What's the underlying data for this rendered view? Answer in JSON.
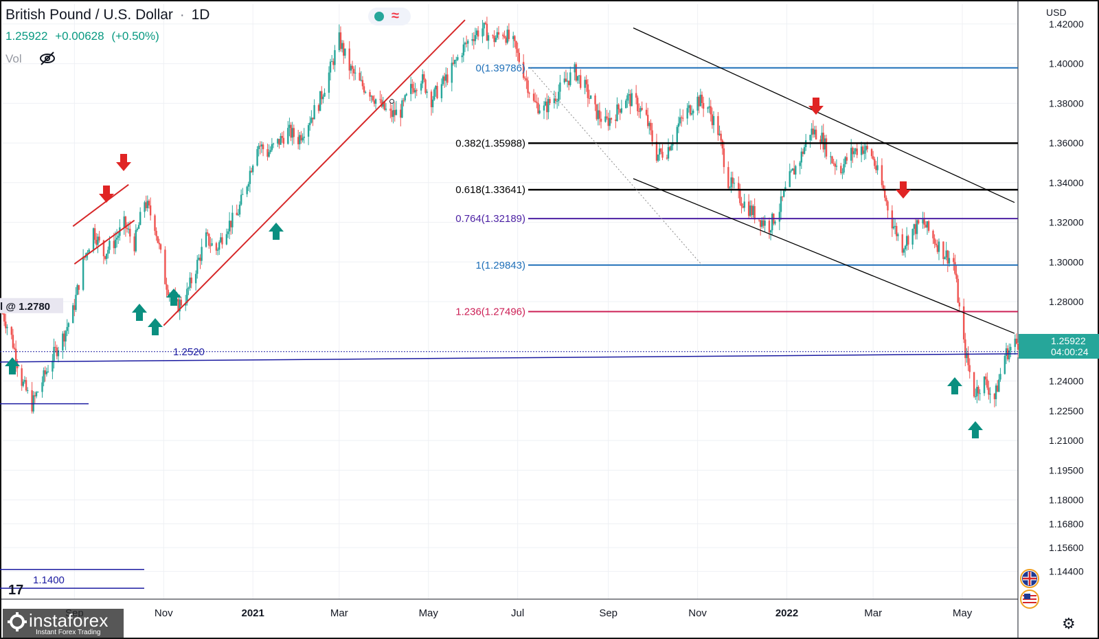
{
  "header": {
    "symbol": "British Pound / U.S. Dollar",
    "interval": "1D",
    "last_price": "1.25922",
    "change": "+0.00628",
    "change_pct": "(+0.50%)",
    "volume_label": "Vol"
  },
  "currency_label": "USD",
  "watermark": {
    "brand": "instaforex",
    "tagline": "Instant Forex Trading"
  },
  "colors": {
    "bull": "#26a69a",
    "bear": "#ef5350",
    "fib_blue": "#1e6fb8",
    "fib_purple": "#4b1fa3",
    "fib_red": "#cc1f55",
    "black": "#000000",
    "trend_red": "#d62728",
    "navy": "#1a1aa0",
    "arrow_up": "#0a8f80",
    "arrow_down": "#e02424"
  },
  "chart_data": {
    "type": "candlestick",
    "title": "British Pound / U.S. Dollar · 1D",
    "y_axis": {
      "ticks": [
        "1.42000",
        "1.40000",
        "1.38000",
        "1.36000",
        "1.34000",
        "1.32000",
        "1.30000",
        "1.28000",
        "1.24000",
        "1.22500",
        "1.21000",
        "1.19500",
        "1.18000",
        "1.16800",
        "1.15600",
        "1.14400"
      ],
      "ylim": [
        1.13,
        1.43
      ]
    },
    "x_axis": {
      "tick_labels": [
        "Sep",
        "Nov",
        "2021",
        "Mar",
        "May",
        "Jul",
        "Sep",
        "Nov",
        "2022",
        "Mar",
        "May"
      ],
      "range": [
        "2020-07-14",
        "2022-06-08"
      ]
    },
    "series_path": [
      [
        "2020-07-14",
        1.274
      ],
      [
        "2020-07-20",
        1.262
      ],
      [
        "2020-07-27",
        1.24
      ],
      [
        "2020-08-03",
        1.228
      ],
      [
        "2020-08-10",
        1.24
      ],
      [
        "2020-08-17",
        1.252
      ],
      [
        "2020-08-24",
        1.262
      ],
      [
        "2020-08-31",
        1.275
      ],
      [
        "2020-09-07",
        1.3
      ],
      [
        "2020-09-14",
        1.316
      ],
      [
        "2020-09-21",
        1.304
      ],
      [
        "2020-09-28",
        1.31
      ],
      [
        "2020-10-05",
        1.319
      ],
      [
        "2020-10-12",
        1.309
      ],
      [
        "2020-10-19",
        1.331
      ],
      [
        "2020-10-26",
        1.319
      ],
      [
        "2020-11-02",
        1.291
      ],
      [
        "2020-11-09",
        1.277
      ],
      [
        "2020-11-16",
        1.282
      ],
      [
        "2020-11-23",
        1.297
      ],
      [
        "2020-11-30",
        1.312
      ],
      [
        "2020-12-07",
        1.306
      ],
      [
        "2020-12-14",
        1.318
      ],
      [
        "2020-12-21",
        1.323
      ],
      [
        "2020-12-28",
        1.34
      ],
      [
        "2021-01-04",
        1.36
      ],
      [
        "2021-01-11",
        1.355
      ],
      [
        "2021-01-18",
        1.36
      ],
      [
        "2021-01-25",
        1.366
      ],
      [
        "2021-02-01",
        1.362
      ],
      [
        "2021-02-08",
        1.371
      ],
      [
        "2021-02-15",
        1.38
      ],
      [
        "2021-02-22",
        1.395
      ],
      [
        "2021-03-01",
        1.412
      ],
      [
        "2021-03-08",
        1.398
      ],
      [
        "2021-03-15",
        1.39
      ],
      [
        "2021-03-22",
        1.386
      ],
      [
        "2021-03-29",
        1.379
      ],
      [
        "2021-04-05",
        1.374
      ],
      [
        "2021-04-12",
        1.376
      ],
      [
        "2021-04-19",
        1.387
      ],
      [
        "2021-04-26",
        1.393
      ],
      [
        "2021-05-03",
        1.382
      ],
      [
        "2021-05-10",
        1.389
      ],
      [
        "2021-05-17",
        1.397
      ],
      [
        "2021-05-24",
        1.407
      ],
      [
        "2021-05-31",
        1.414
      ],
      [
        "2021-06-07",
        1.418
      ],
      [
        "2021-06-14",
        1.412
      ],
      [
        "2021-06-21",
        1.416
      ],
      [
        "2021-06-28",
        1.41
      ],
      [
        "2021-07-05",
        1.396
      ],
      [
        "2021-07-12",
        1.38
      ],
      [
        "2021-07-19",
        1.377
      ],
      [
        "2021-07-26",
        1.383
      ],
      [
        "2021-08-02",
        1.39
      ],
      [
        "2021-08-09",
        1.396
      ],
      [
        "2021-08-16",
        1.388
      ],
      [
        "2021-08-23",
        1.376
      ],
      [
        "2021-08-30",
        1.37
      ],
      [
        "2021-09-06",
        1.375
      ],
      [
        "2021-09-13",
        1.383
      ],
      [
        "2021-09-20",
        1.38
      ],
      [
        "2021-09-27",
        1.372
      ],
      [
        "2021-10-04",
        1.354
      ],
      [
        "2021-10-11",
        1.356
      ],
      [
        "2021-10-18",
        1.368
      ],
      [
        "2021-10-25",
        1.376
      ],
      [
        "2021-11-01",
        1.382
      ],
      [
        "2021-11-08",
        1.378
      ],
      [
        "2021-11-15",
        1.366
      ],
      [
        "2021-11-22",
        1.341
      ],
      [
        "2021-11-29",
        1.333
      ],
      [
        "2021-12-06",
        1.327
      ],
      [
        "2021-12-13",
        1.322
      ],
      [
        "2021-12-20",
        1.318
      ],
      [
        "2021-12-27",
        1.327
      ],
      [
        "2022-01-03",
        1.342
      ],
      [
        "2022-01-10",
        1.352
      ],
      [
        "2022-01-17",
        1.366
      ],
      [
        "2022-01-24",
        1.364
      ],
      [
        "2022-01-31",
        1.352
      ],
      [
        "2022-02-07",
        1.347
      ],
      [
        "2022-02-14",
        1.355
      ],
      [
        "2022-02-21",
        1.358
      ],
      [
        "2022-02-28",
        1.354
      ],
      [
        "2022-03-07",
        1.338
      ],
      [
        "2022-03-14",
        1.32
      ],
      [
        "2022-03-21",
        1.308
      ],
      [
        "2022-03-28",
        1.316
      ],
      [
        "2022-04-04",
        1.32
      ],
      [
        "2022-04-11",
        1.312
      ],
      [
        "2022-04-18",
        1.305
      ],
      [
        "2022-04-25",
        1.3
      ],
      [
        "2022-05-02",
        1.258
      ],
      [
        "2022-05-09",
        1.234
      ],
      [
        "2022-05-16",
        1.24
      ],
      [
        "2022-05-23",
        1.231
      ],
      [
        "2022-05-30",
        1.253
      ],
      [
        "2022-06-06",
        1.259
      ]
    ],
    "fibonacci_levels": [
      {
        "label": "0(1.39786)",
        "value": 1.39786
      },
      {
        "label": "0.382(1.35988)",
        "value": 1.35988
      },
      {
        "label": "0.618(1.33641)",
        "value": 1.33641
      },
      {
        "label": "0.764(1.32189)",
        "value": 1.32189
      },
      {
        "label": "1(1.29843)",
        "value": 1.29843
      },
      {
        "label": "1.236(1.27496)",
        "value": 1.27496
      }
    ],
    "horizontal_levels": [
      {
        "label": "1.2520",
        "value": 1.252
      },
      {
        "label": "1.1400",
        "value": 1.14
      },
      {
        "label": "l @ 1.2780",
        "value": 1.278
      }
    ],
    "current_price": {
      "label": "1.25922",
      "countdown": "04:00:24",
      "value": 1.25922
    }
  }
}
